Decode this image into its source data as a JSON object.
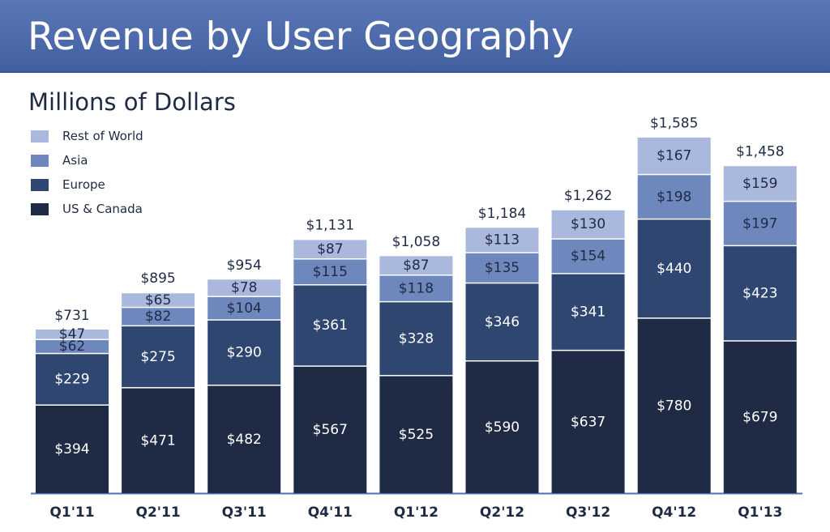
{
  "header": {
    "title": "Revenue by User Geography"
  },
  "chart_data": {
    "type": "bar",
    "stacked": true,
    "subtitle": "Millions of Dollars",
    "categories": [
      "Q1'11",
      "Q2'11",
      "Q3'11",
      "Q4'11",
      "Q1'12",
      "Q2'12",
      "Q3'12",
      "Q4'12",
      "Q1'13"
    ],
    "series": [
      {
        "name": "US & Canada",
        "color": "#1f2a44",
        "values": [
          394,
          471,
          482,
          567,
          525,
          590,
          637,
          780,
          679
        ]
      },
      {
        "name": "Europe",
        "color": "#2f4670",
        "values": [
          229,
          275,
          290,
          361,
          328,
          346,
          341,
          440,
          423
        ]
      },
      {
        "name": "Asia",
        "color": "#6e87bc",
        "values": [
          62,
          82,
          104,
          115,
          118,
          135,
          154,
          198,
          197
        ]
      },
      {
        "name": "Rest of World",
        "color": "#a9b8dc",
        "values": [
          47,
          65,
          78,
          87,
          87,
          113,
          130,
          167,
          159
        ]
      }
    ],
    "segment_labels": [
      [
        "$394",
        "$471",
        "$482",
        "$567",
        "$525",
        "$590",
        "$637",
        "$780",
        "$679"
      ],
      [
        "$229",
        "$275",
        "$290",
        "$361",
        "$328",
        "$346",
        "$341",
        "$440",
        "$423"
      ],
      [
        "$62",
        "$82",
        "$104",
        "$115",
        "$118",
        "$135",
        "$154",
        "$198",
        "$197"
      ],
      [
        "$47",
        "$65",
        "$78",
        "$87",
        "$87",
        "$113",
        "$130",
        "$167",
        "$159"
      ]
    ],
    "totals": [
      731,
      895,
      954,
      1131,
      1058,
      1184,
      1262,
      1585,
      1458
    ],
    "total_labels": [
      "$731",
      "$895",
      "$954",
      "$1,131",
      "$1,058",
      "$1,184",
      "$1,262",
      "$1,585",
      "$1,458"
    ],
    "legend_order": [
      "Rest of World",
      "Asia",
      "Europe",
      "US & Canada"
    ],
    "legend_position": "top-left",
    "grid": false
  }
}
